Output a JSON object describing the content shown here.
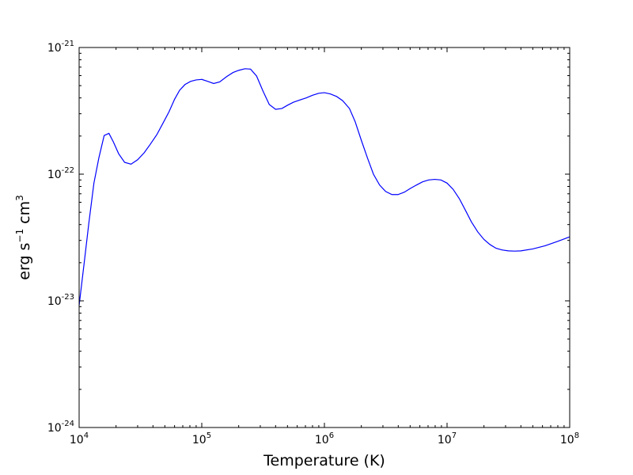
{
  "chart_data": {
    "type": "line",
    "xscale": "log",
    "yscale": "log",
    "xlim": [
      10000,
      100000000
    ],
    "ylim": [
      1e-24,
      1e-21
    ],
    "xlabel": "Temperature (K)",
    "ylabel": {
      "base": "erg  s",
      "sup1": "−1",
      "mid": " cm",
      "sup2": "3"
    },
    "xticks": [
      {
        "value": 10000,
        "base": "10",
        "exp": "4"
      },
      {
        "value": 100000,
        "base": "10",
        "exp": "5"
      },
      {
        "value": 1000000,
        "base": "10",
        "exp": "6"
      },
      {
        "value": 10000000,
        "base": "10",
        "exp": "7"
      },
      {
        "value": 100000000,
        "base": "10",
        "exp": "8"
      }
    ],
    "yticks": [
      {
        "value": 1e-24,
        "base": "10",
        "exp": "-24"
      },
      {
        "value": 1e-23,
        "base": "10",
        "exp": "-23"
      },
      {
        "value": 1e-22,
        "base": "10",
        "exp": "-22"
      },
      {
        "value": 1e-21,
        "base": "10",
        "exp": "-21"
      }
    ],
    "grid": false,
    "legend": "none",
    "series": [
      {
        "color": "#0000ff",
        "x": [
          10000,
          11000,
          12000,
          13200,
          14500,
          16000,
          17500,
          19000,
          21000,
          23500,
          26500,
          30000,
          34000,
          38000,
          43000,
          48000,
          54000,
          60000,
          66000,
          73000,
          81000,
          90000,
          100000,
          112000,
          125000,
          140000,
          160000,
          180000,
          200000,
          225000,
          250000,
          280000,
          315000,
          355000,
          400000,
          450000,
          500000,
          560000,
          630000,
          710000,
          800000,
          900000,
          1000000,
          1120000,
          1260000,
          1410000,
          1600000,
          1780000,
          2000000,
          2240000,
          2510000,
          2820000,
          3160000,
          3550000,
          3980000,
          4470000,
          5010000,
          5620000,
          6310000,
          7080000,
          7940000,
          8910000,
          10000000,
          11200000,
          12600000,
          14100000,
          15800000,
          17800000,
          20000000,
          22400000,
          25100000,
          28200000,
          31600000,
          35500000,
          40000000,
          50000000,
          63000000,
          80000000,
          100000000
        ],
        "y": [
          9.2e-24,
          2e-23,
          4.1e-23,
          8.5e-23,
          1.35e-22,
          2.02e-22,
          2.1e-22,
          1.8e-22,
          1.45e-22,
          1.24e-22,
          1.2e-22,
          1.3e-22,
          1.48e-22,
          1.72e-22,
          2.05e-22,
          2.5e-22,
          3.1e-22,
          3.9e-22,
          4.6e-22,
          5.1e-22,
          5.4e-22,
          5.55e-22,
          5.6e-22,
          5.4e-22,
          5.2e-22,
          5.35e-22,
          5.9e-22,
          6.35e-22,
          6.6e-22,
          6.8e-22,
          6.75e-22,
          5.95e-22,
          4.55e-22,
          3.55e-22,
          3.25e-22,
          3.3e-22,
          3.5e-22,
          3.7e-22,
          3.85e-22,
          4e-22,
          4.2e-22,
          4.35e-22,
          4.4e-22,
          4.3e-22,
          4.1e-22,
          3.8e-22,
          3.3e-22,
          2.6e-22,
          1.85e-22,
          1.35e-22,
          1e-22,
          8.2e-23,
          7.3e-23,
          6.9e-23,
          6.9e-23,
          7.2e-23,
          7.7e-23,
          8.2e-23,
          8.7e-23,
          9e-23,
          9.1e-23,
          9e-23,
          8.5e-23,
          7.6e-23,
          6.4e-23,
          5.2e-23,
          4.2e-23,
          3.5e-23,
          3.05e-23,
          2.78e-23,
          2.6e-23,
          2.52e-23,
          2.48e-23,
          2.47e-23,
          2.48e-23,
          2.57e-23,
          2.72e-23,
          2.95e-23,
          3.2e-23
        ]
      }
    ]
  }
}
